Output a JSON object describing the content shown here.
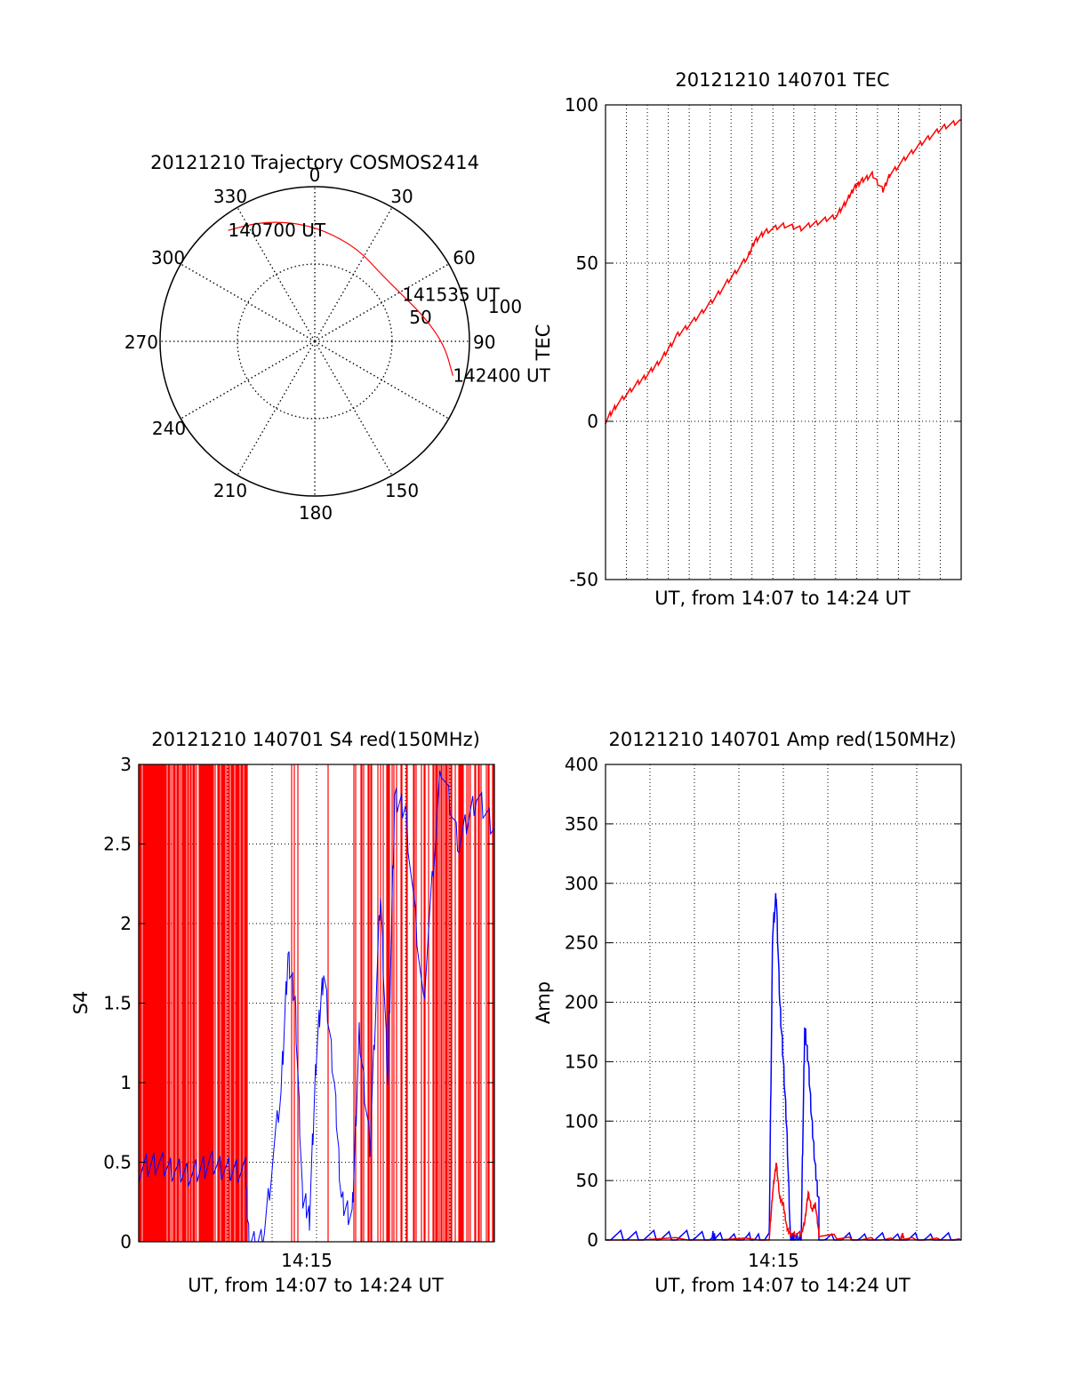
{
  "colors": {
    "red": "#ff0000",
    "blue": "#0000ff",
    "axis": "#000000",
    "grid": "#000000"
  },
  "chart_data": [
    {
      "type": "polar",
      "title": "20121210 Trajectory COSMOS2414",
      "angle_ticks": [
        "0",
        "30",
        "60",
        "90",
        "150",
        "180",
        "210",
        "240",
        "270",
        "300",
        "330"
      ],
      "radius_ticks": [
        "50",
        "100"
      ],
      "rlim": [
        0,
        100
      ],
      "trajectory": {
        "points": [
          {
            "az": 322,
            "r": 91
          },
          {
            "az": 335,
            "r": 85
          },
          {
            "az": 350,
            "r": 78
          },
          {
            "az": 5,
            "r": 72
          },
          {
            "az": 25,
            "r": 66
          },
          {
            "az": 45,
            "r": 61
          },
          {
            "az": 62,
            "r": 64
          },
          {
            "az": 78,
            "r": 73
          },
          {
            "az": 92,
            "r": 84
          },
          {
            "az": 104,
            "r": 92
          }
        ],
        "labels": [
          {
            "text": "140700 UT",
            "az": 322,
            "r": 91
          },
          {
            "text": "141535 UT",
            "az": 62,
            "r": 64
          },
          {
            "text": "142400 UT",
            "az": 104,
            "r": 92
          }
        ]
      }
    },
    {
      "type": "line",
      "title": "20121210 140701 TEC",
      "xlabel": "UT, from 14:07 to 14:24 UT",
      "ylabel": "TEC",
      "ylim": [
        -50,
        100
      ],
      "yticks": [
        "-50",
        "0",
        "50",
        "100"
      ],
      "grid": true,
      "series": [
        {
          "color": "red",
          "x": [
            0,
            0.03,
            0.08,
            0.12,
            0.16,
            0.2,
            0.25,
            0.3,
            0.35,
            0.4,
            0.42,
            0.45,
            0.5,
            0.55,
            0.6,
            0.65,
            0.68,
            0.7,
            0.72,
            0.75,
            0.78,
            0.8,
            0.85,
            0.9,
            0.95,
            1.0
          ],
          "y": [
            0,
            5,
            11,
            15,
            20,
            27,
            32,
            38,
            45,
            52,
            57,
            60,
            62,
            61,
            63,
            65,
            70,
            74,
            76,
            78,
            73,
            78,
            84,
            89,
            93,
            95
          ]
        }
      ]
    },
    {
      "type": "line",
      "title": "20121210 140701 S4 red(150MHz)",
      "xlabel": "UT, from 14:07 to 14:24 UT",
      "ylabel": "S4",
      "ylim": [
        0,
        3
      ],
      "yticks": [
        "0",
        "0.5",
        "1",
        "1.5",
        "2",
        "2.5",
        "3"
      ],
      "xticks": [
        "14:15"
      ],
      "grid": true,
      "series": [
        {
          "color": "blue",
          "x": [
            0,
            0.05,
            0.1,
            0.15,
            0.2,
            0.25,
            0.3,
            0.31,
            0.35,
            0.4,
            0.42,
            0.44,
            0.46,
            0.48,
            0.5,
            0.52,
            0.55,
            0.57,
            0.6,
            0.62,
            0.65,
            0.68,
            0.7,
            0.72,
            0.75,
            0.8,
            0.85,
            0.9,
            0.95,
            1.0
          ],
          "y": [
            0.45,
            0.5,
            0.45,
            0.42,
            0.5,
            0.45,
            0.45,
            0.0,
            0.0,
            0.95,
            1.8,
            1.5,
            0.3,
            0.15,
            1.2,
            1.7,
            1.0,
            0.25,
            0.15,
            1.3,
            0.6,
            2.2,
            1.0,
            2.8,
            2.7,
            1.5,
            3.0,
            2.5,
            2.8,
            2.6
          ]
        }
      ]
    },
    {
      "type": "line",
      "title": "20121210 140701 Amp red(150MHz)",
      "xlabel": "UT, from 14:07 to 14:24 UT",
      "ylabel": "Amp",
      "ylim": [
        0,
        400
      ],
      "yticks": [
        "0",
        "50",
        "100",
        "150",
        "200",
        "250",
        "300",
        "350",
        "400"
      ],
      "xticks": [
        "14:15"
      ],
      "grid": true,
      "series": [
        {
          "color": "blue",
          "x": [
            0,
            0.1,
            0.2,
            0.3,
            0.31,
            0.4,
            0.46,
            0.47,
            0.48,
            0.49,
            0.5,
            0.51,
            0.52,
            0.53,
            0.55,
            0.56,
            0.57,
            0.58,
            0.59,
            0.6,
            0.6,
            0.7,
            0.8,
            0.9,
            1.0
          ],
          "y": [
            2,
            2,
            2,
            2,
            0,
            0,
            0,
            260,
            290,
            200,
            150,
            90,
            0,
            0,
            0,
            180,
            150,
            100,
            60,
            30,
            0,
            0,
            0,
            0,
            0
          ]
        },
        {
          "color": "red",
          "x": [
            0,
            0.46,
            0.47,
            0.48,
            0.49,
            0.5,
            0.51,
            0.52,
            0.55,
            0.56,
            0.57,
            0.58,
            0.59,
            0.6,
            0.7,
            0.83,
            0.835,
            0.84,
            1.0
          ],
          "y": [
            0,
            0,
            40,
            65,
            35,
            30,
            10,
            5,
            5,
            15,
            40,
            25,
            30,
            5,
            0,
            0,
            5,
            0,
            0
          ]
        }
      ]
    }
  ]
}
